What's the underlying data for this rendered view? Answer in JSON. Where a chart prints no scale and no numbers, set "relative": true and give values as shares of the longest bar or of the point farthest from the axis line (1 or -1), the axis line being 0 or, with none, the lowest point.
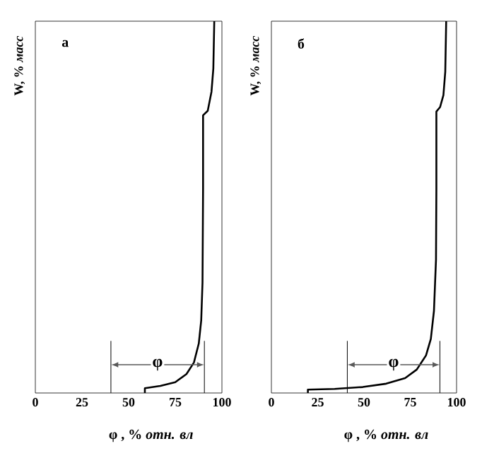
{
  "chart_data": [
    {
      "type": "line",
      "relative": true,
      "xlim": [
        0,
        100
      ],
      "xticks": [
        0,
        25,
        50,
        75,
        100
      ],
      "xlabel": "φ , % *отн. вл*",
      "ylabel": "W, % *масс*",
      "annotations": [
        "а",
        {
          "text": "φ",
          "x": 65.5,
          "y": 0.076
        }
      ],
      "series": [
        {
          "color": "#000000",
          "x": [
            40.5,
            40.5
          ],
          "values": [
            0,
            0.14
          ]
        },
        {
          "color": "#000000",
          "x": [
            90.6,
            90.6
          ],
          "values": [
            0,
            0.14
          ]
        },
        {
          "color": "#000000",
          "x": [
            58.7,
            58.7,
            67,
            75,
            81,
            85,
            87.6,
            88.9,
            89.6,
            89.9,
            89.9,
            92.4,
            94.4,
            95.4,
            95.9
          ],
          "values": [
            0,
            0.013,
            0.019,
            0.029,
            0.051,
            0.082,
            0.133,
            0.195,
            0.297,
            0.55,
            0.747,
            0.759,
            0.81,
            0.873,
            1.0
          ]
        }
      ]
    },
    {
      "type": "line",
      "relative": true,
      "xlim": [
        0,
        100
      ],
      "xticks": [
        0,
        25,
        50,
        75,
        100
      ],
      "xlabel": "φ , % *отн. вл*",
      "ylabel": "W, % *масс*",
      "annotations": [
        "б",
        {
          "text": "φ",
          "x": 66,
          "y": 0.076
        }
      ],
      "series": [
        {
          "color": "#000000",
          "x": [
            41,
            41
          ],
          "values": [
            0,
            0.14
          ]
        },
        {
          "color": "#000000",
          "x": [
            91,
            91
          ],
          "values": [
            0,
            0.14
          ]
        },
        {
          "color": "#000000",
          "x": [
            19.7,
            19.7,
            34.2,
            49.4,
            62.0,
            72.2,
            78.5,
            83.5,
            86.1,
            87.8,
            88.9,
            89.1,
            89.1,
            91.1,
            92.9,
            93.9,
            94.4
          ],
          "values": [
            0,
            0.009,
            0.011,
            0.016,
            0.025,
            0.04,
            0.063,
            0.101,
            0.145,
            0.221,
            0.359,
            0.549,
            0.757,
            0.769,
            0.801,
            0.864,
            1.0
          ]
        }
      ]
    }
  ]
}
